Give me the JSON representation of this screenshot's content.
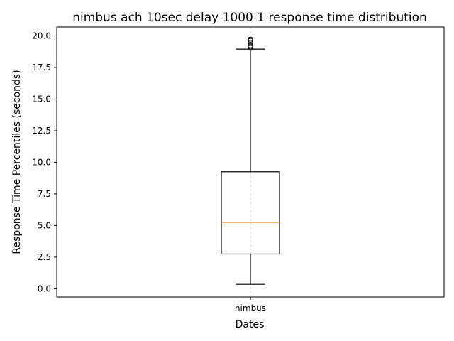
{
  "chart_data": {
    "type": "box",
    "title": "nimbus ach 10sec delay 1000 1 response time distribution",
    "xlabel": "Dates",
    "ylabel": "Response Time Percentiles (seconds)",
    "categories": [
      "nimbus"
    ],
    "ylim": [
      -0.65,
      20.7
    ],
    "yticks": [
      "0.0",
      "2.5",
      "5.0",
      "7.5",
      "10.0",
      "12.5",
      "15.0",
      "17.5",
      "20.0"
    ],
    "grid": "x-only dashed",
    "boxes": [
      {
        "name": "nimbus",
        "whisker_low": 0.35,
        "q1": 2.75,
        "median": 5.25,
        "q3": 9.25,
        "whisker_high": 18.95,
        "outliers": [
          19.05,
          19.15,
          19.25,
          19.45,
          19.6,
          19.7
        ]
      }
    ],
    "colors": {
      "box": "#000000",
      "median": "#ff7f0e",
      "grid": "#b0b0b0"
    }
  }
}
